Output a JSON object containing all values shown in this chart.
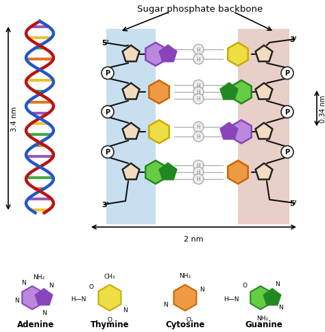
{
  "title": "Sugar phosphate backbone",
  "bg_color": "#ffffff",
  "blue_bg": "#c8dff0",
  "pink_bg": "#e8cfc8",
  "adenine_dark": "#8844bb",
  "adenine_light": "#bb88dd",
  "thymine_dark": "#ccaa00",
  "thymine_light": "#eedd44",
  "cytosine_dark": "#cc6600",
  "cytosine_light": "#ee9944",
  "guanine_dark": "#228822",
  "guanine_light": "#66cc44",
  "sugar_fill": "#f2dcc0",
  "sugar_edge": "#222222",
  "backbone_color": "#111111",
  "hbond_fill": "#eeeeee",
  "hbond_edge": "#aaaaaa",
  "phosphate_fill": "#ffffff",
  "phosphate_edge": "#222222",
  "label_adenine": "Adenine",
  "label_thymine": "Thymine",
  "label_cytosine": "Cytosine",
  "label_guanine": "Guanine",
  "dim_34nm": "3.4 nm",
  "dim_034nm": "0.34 nm",
  "dim_2nm": "2 nm",
  "prime5L": "5'",
  "prime3L": "3'",
  "prime3R": "3'",
  "prime5R": "5'",
  "helix_blue": "#2255cc",
  "helix_red": "#bb1111",
  "rung_colors": [
    "#9b59b6",
    "#f0c030",
    "#44aa44",
    "#e07820",
    "#9b59b6",
    "#f0c030",
    "#44aa44",
    "#e07820",
    "#9b59b6",
    "#f0c030",
    "#44aa44",
    "#e07820",
    "#9b59b6",
    "#f0c030",
    "#44aa44",
    "#e07820"
  ]
}
